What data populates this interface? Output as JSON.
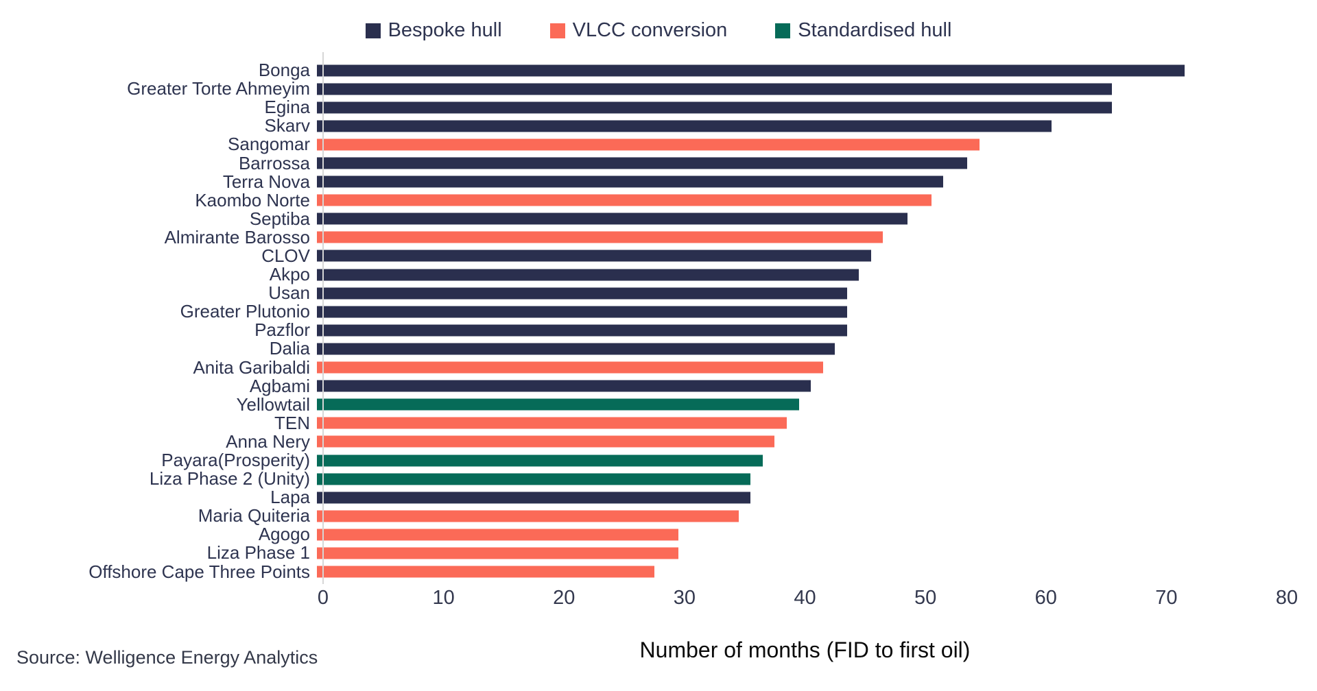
{
  "legend": {
    "items": [
      {
        "label": "Bespoke hull",
        "color": "#2A2F4E"
      },
      {
        "label": "VLCC conversion",
        "color": "#FB6A57"
      },
      {
        "label": "Standardised hull",
        "color": "#066B58"
      }
    ]
  },
  "chart_data": {
    "type": "bar",
    "orientation": "horizontal",
    "title": "",
    "xlabel": "Number of months (FID to first oil)",
    "ylabel": "",
    "xlim": [
      0,
      80
    ],
    "xticks": [
      0,
      10,
      20,
      30,
      40,
      50,
      60,
      70,
      80
    ],
    "grid": false,
    "legend_position": "top",
    "category_colors": {
      "Bespoke hull": "#2A2F4E",
      "VLCC conversion": "#FB6A57",
      "Standardised hull": "#066B58"
    },
    "bars": [
      {
        "label": "Bonga",
        "value": 72,
        "hull_type": "Bespoke hull"
      },
      {
        "label": "Greater Torte Ahmeyim",
        "value": 66,
        "hull_type": "Bespoke hull"
      },
      {
        "label": "Egina",
        "value": 66,
        "hull_type": "Bespoke hull"
      },
      {
        "label": "Skarv",
        "value": 61,
        "hull_type": "Bespoke hull"
      },
      {
        "label": "Sangomar",
        "value": 55,
        "hull_type": "VLCC conversion"
      },
      {
        "label": "Barrossa",
        "value": 54,
        "hull_type": "Bespoke hull"
      },
      {
        "label": "Terra Nova",
        "value": 52,
        "hull_type": "Bespoke hull"
      },
      {
        "label": "Kaombo Norte",
        "value": 51,
        "hull_type": "VLCC conversion"
      },
      {
        "label": "Septiba",
        "value": 49,
        "hull_type": "Bespoke hull"
      },
      {
        "label": "Almirante Barosso",
        "value": 47,
        "hull_type": "VLCC conversion"
      },
      {
        "label": "CLOV",
        "value": 46,
        "hull_type": "Bespoke hull"
      },
      {
        "label": "Akpo",
        "value": 45,
        "hull_type": "Bespoke hull"
      },
      {
        "label": "Usan",
        "value": 44,
        "hull_type": "Bespoke hull"
      },
      {
        "label": "Greater Plutonio",
        "value": 44,
        "hull_type": "Bespoke hull"
      },
      {
        "label": "Pazflor",
        "value": 44,
        "hull_type": "Bespoke hull"
      },
      {
        "label": "Dalia",
        "value": 43,
        "hull_type": "Bespoke hull"
      },
      {
        "label": "Anita Garibaldi",
        "value": 42,
        "hull_type": "VLCC conversion"
      },
      {
        "label": "Agbami",
        "value": 41,
        "hull_type": "Bespoke hull"
      },
      {
        "label": "Yellowtail",
        "value": 40,
        "hull_type": "Standardised hull"
      },
      {
        "label": "TEN",
        "value": 39,
        "hull_type": "VLCC conversion"
      },
      {
        "label": "Anna Nery",
        "value": 38,
        "hull_type": "VLCC conversion"
      },
      {
        "label": "Payara(Prosperity)",
        "value": 37,
        "hull_type": "Standardised hull"
      },
      {
        "label": "Liza Phase 2 (Unity)",
        "value": 36,
        "hull_type": "Standardised hull"
      },
      {
        "label": "Lapa",
        "value": 36,
        "hull_type": "Bespoke hull"
      },
      {
        "label": "Maria Quiteria",
        "value": 35,
        "hull_type": "VLCC conversion"
      },
      {
        "label": "Agogo",
        "value": 30,
        "hull_type": "VLCC conversion"
      },
      {
        "label": "Liza Phase 1",
        "value": 30,
        "hull_type": "VLCC conversion"
      },
      {
        "label": "Offshore Cape Three Points",
        "value": 28,
        "hull_type": "VLCC conversion"
      }
    ]
  },
  "footer": {
    "source": "Source: Welligence Energy Analytics"
  }
}
